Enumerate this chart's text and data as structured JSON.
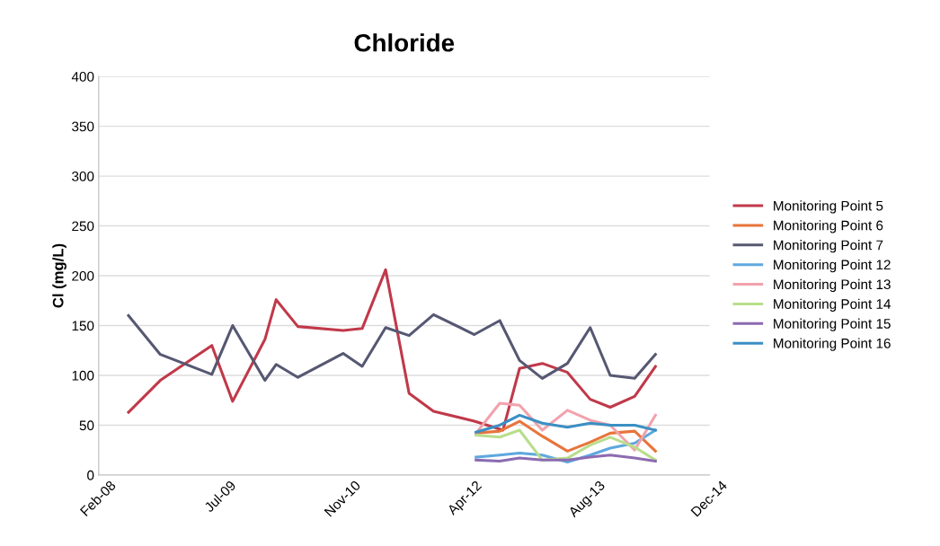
{
  "chart_data": {
    "type": "line",
    "title": "Chloride",
    "ylabel": "Cl (mg/L)",
    "xlim": [
      "2008-02-25",
      "2014-12-30"
    ],
    "xticks": [
      {
        "value": "2008-02-25",
        "label": "Feb-08"
      },
      {
        "value": "2009-07-09",
        "label": "Jul-09"
      },
      {
        "value": "2010-11-21",
        "label": "Nov-10"
      },
      {
        "value": "2012-04-04",
        "label": "Apr-12"
      },
      {
        "value": "2013-08-17",
        "label": "Aug-13"
      },
      {
        "value": "2014-12-30",
        "label": "Dec-14"
      }
    ],
    "ylim": [
      0,
      400
    ],
    "yticks": [
      0,
      50,
      100,
      150,
      200,
      250,
      300,
      350,
      400
    ],
    "grid": "y",
    "legend": "right",
    "marker": "none",
    "line_style": "solid",
    "series": [
      {
        "name": "Monitoring Point 5",
        "color": "#c0394a",
        "x": [
          "2008-06-26",
          "2008-11-03",
          "2009-06-02",
          "2009-08-26",
          "2010-01-05",
          "2010-02-20",
          "2010-05-20",
          "2010-11-21",
          "2011-02-07",
          "2011-05-14",
          "2011-08-18",
          "2011-11-26",
          "2012-05-11",
          "2012-09-05",
          "2012-11-12",
          "2013-02-13",
          "2013-05-27",
          "2013-08-28",
          "2013-11-18",
          "2014-02-26",
          "2014-05-22"
        ],
        "values": [
          63,
          95,
          130,
          74,
          136,
          176,
          149,
          145,
          147,
          206,
          82,
          64,
          54,
          45,
          107,
          112,
          103,
          76,
          68,
          79,
          109
        ]
      },
      {
        "name": "Monitoring Point 6",
        "color": "#e8743b",
        "x": [
          "2012-05-18",
          "2012-08-23",
          "2012-11-12",
          "2013-02-13",
          "2013-05-27",
          "2013-08-28",
          "2013-11-18",
          "2014-02-26",
          "2014-05-22"
        ],
        "values": [
          42,
          44,
          54,
          39,
          24,
          33,
          42,
          44,
          24
        ]
      },
      {
        "name": "Monitoring Point 7",
        "color": "#565872",
        "x": [
          "2008-06-26",
          "2008-11-03",
          "2009-06-02",
          "2009-08-26",
          "2010-01-05",
          "2010-02-20",
          "2010-05-20",
          "2010-11-21",
          "2011-02-07",
          "2011-05-14",
          "2011-08-18",
          "2011-11-26",
          "2012-05-11",
          "2012-08-23",
          "2012-11-12",
          "2013-02-13",
          "2013-05-27",
          "2013-08-28",
          "2013-11-18",
          "2014-02-26",
          "2014-05-22"
        ],
        "values": [
          160,
          121,
          101,
          150,
          95,
          111,
          98,
          122,
          109,
          148,
          140,
          161,
          141,
          155,
          115,
          97,
          112,
          148,
          100,
          97,
          121
        ]
      },
      {
        "name": "Monitoring Point 12",
        "color": "#5ea8de",
        "x": [
          "2012-05-18",
          "2012-08-23",
          "2012-11-12",
          "2013-02-13",
          "2013-05-27",
          "2013-08-28",
          "2013-11-18",
          "2014-02-26",
          "2014-05-22"
        ],
        "values": [
          18,
          20,
          22,
          20,
          13,
          20,
          27,
          32,
          45
        ]
      },
      {
        "name": "Monitoring Point 13",
        "color": "#f2a2ac",
        "x": [
          "2012-05-18",
          "2012-08-23",
          "2012-11-12",
          "2013-02-13",
          "2013-05-27",
          "2013-08-28",
          "2013-11-18",
          "2014-02-26",
          "2014-05-22"
        ],
        "values": [
          42,
          72,
          70,
          45,
          65,
          55,
          50,
          25,
          60
        ]
      },
      {
        "name": "Monitoring Point 14",
        "color": "#b9de8c",
        "x": [
          "2012-05-18",
          "2012-08-23",
          "2012-11-12",
          "2013-02-13",
          "2013-05-27",
          "2013-08-28",
          "2013-11-18",
          "2014-02-26",
          "2014-05-22"
        ],
        "values": [
          40,
          38,
          45,
          15,
          17,
          30,
          38,
          28,
          15
        ]
      },
      {
        "name": "Monitoring Point 15",
        "color": "#8c6bb1",
        "x": [
          "2012-05-18",
          "2012-08-23",
          "2012-11-12",
          "2013-02-13",
          "2013-05-27",
          "2013-08-28",
          "2013-11-18",
          "2014-02-26",
          "2014-05-22"
        ],
        "values": [
          15,
          14,
          17,
          15,
          15,
          18,
          20,
          17,
          14
        ]
      },
      {
        "name": "Monitoring Point 16",
        "color": "#3a8fc4",
        "x": [
          "2012-05-18",
          "2012-08-23",
          "2012-11-12",
          "2013-02-13",
          "2013-05-27",
          "2013-08-28",
          "2013-11-18",
          "2014-02-26",
          "2014-05-22"
        ],
        "values": [
          43,
          50,
          60,
          52,
          48,
          52,
          50,
          50,
          45
        ]
      }
    ]
  }
}
